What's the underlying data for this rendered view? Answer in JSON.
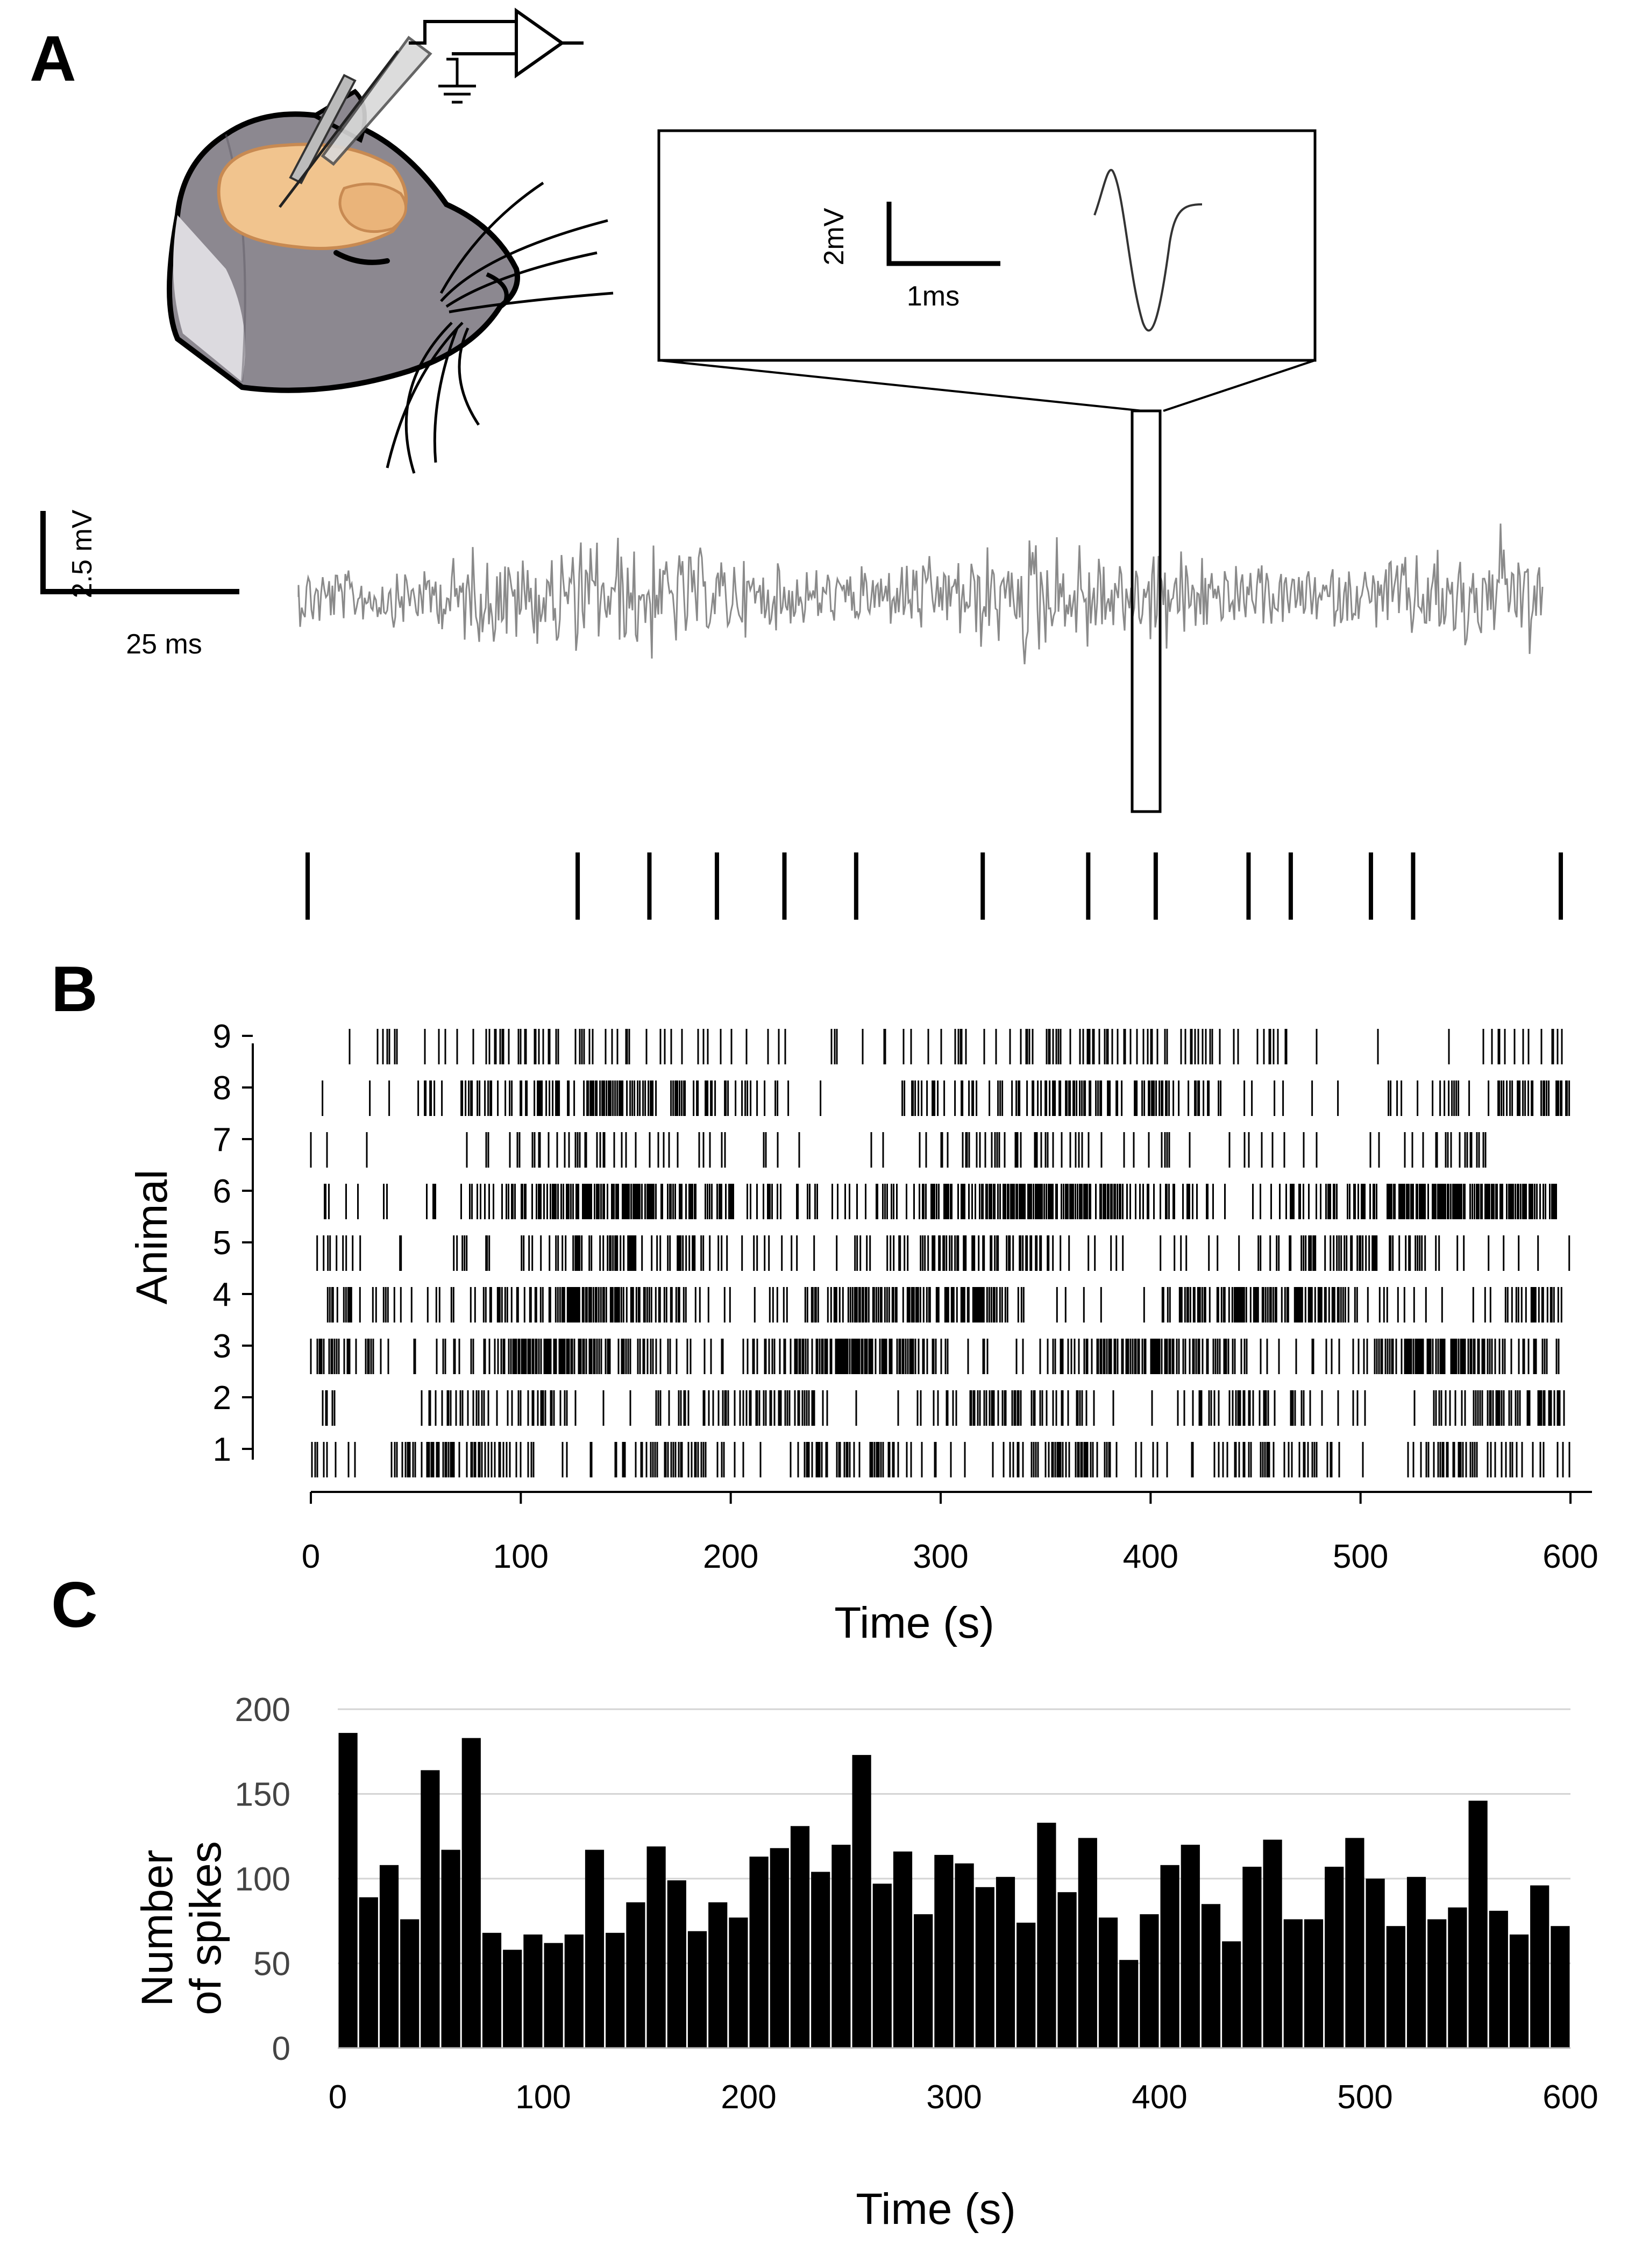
{
  "panels": {
    "a": "A",
    "b": "B",
    "c": "C"
  },
  "panel_a": {
    "inset": {
      "v_scale": "2mV",
      "t_scale": "1ms"
    },
    "trace_scale": {
      "v_scale": "2.5 mV",
      "t_scale": "25 ms"
    },
    "spike_times_ms": [
      0,
      64,
      81,
      97,
      113,
      130,
      160,
      185,
      201,
      223,
      233,
      252,
      262,
      297
    ]
  },
  "chart_data": [
    {
      "type": "raster",
      "title": "",
      "xlabel": "Time (s)",
      "ylabel": "Animal",
      "xlim": [
        0,
        600
      ],
      "xticks": [
        0,
        100,
        200,
        300,
        400,
        500,
        600
      ],
      "animals": [
        "1",
        "2",
        "3",
        "4",
        "5",
        "6",
        "7",
        "8",
        "9"
      ],
      "rows": [
        {
          "animal": "1",
          "density": 0.55,
          "start": 0,
          "end": 603
        },
        {
          "animal": "2",
          "density": 0.45,
          "start": 0,
          "end": 600
        },
        {
          "animal": "3",
          "density": 0.85,
          "start": 0,
          "end": 602
        },
        {
          "animal": "4",
          "density": 0.75,
          "start": 7,
          "end": 596
        },
        {
          "animal": "5",
          "density": 0.45,
          "start": 3,
          "end": 601
        },
        {
          "animal": "6",
          "density": 0.9,
          "start": 5,
          "end": 594
        },
        {
          "animal": "7",
          "density": 0.25,
          "start": 0,
          "end": 560
        },
        {
          "animal": "8",
          "density": 0.55,
          "start": 4,
          "end": 600
        },
        {
          "animal": "9",
          "density": 0.3,
          "start": 0,
          "end": 596
        }
      ]
    },
    {
      "type": "bar",
      "title": "",
      "xlabel": "Time (s)",
      "ylabel": [
        "Number",
        "of spikes"
      ],
      "bin_width": 10,
      "xlim": [
        0,
        600
      ],
      "ylim": [
        0,
        200
      ],
      "xticks": [
        0,
        100,
        200,
        300,
        400,
        500,
        600
      ],
      "yticks": [
        0,
        50,
        100,
        150,
        200
      ],
      "grid": true,
      "bin_starts": [
        0,
        10,
        20,
        30,
        40,
        50,
        60,
        70,
        80,
        90,
        100,
        110,
        120,
        130,
        140,
        150,
        160,
        170,
        180,
        190,
        200,
        210,
        220,
        230,
        240,
        250,
        260,
        270,
        280,
        290,
        300,
        310,
        320,
        330,
        340,
        350,
        360,
        370,
        380,
        390,
        400,
        410,
        420,
        430,
        440,
        450,
        460,
        470,
        480,
        490,
        500,
        510,
        520,
        530,
        540,
        550,
        560,
        570,
        580,
        590
      ],
      "values": [
        186,
        89,
        108,
        76,
        164,
        117,
        183,
        68,
        58,
        67,
        62,
        67,
        117,
        68,
        86,
        119,
        99,
        69,
        86,
        77,
        113,
        118,
        131,
        104,
        120,
        173,
        97,
        116,
        79,
        114,
        109,
        95,
        101,
        74,
        133,
        92,
        124,
        77,
        52,
        79,
        108,
        120,
        85,
        63,
        107,
        123,
        76,
        76,
        107,
        124,
        100,
        72,
        101,
        76,
        83,
        146,
        81,
        67,
        96,
        72
      ]
    }
  ]
}
